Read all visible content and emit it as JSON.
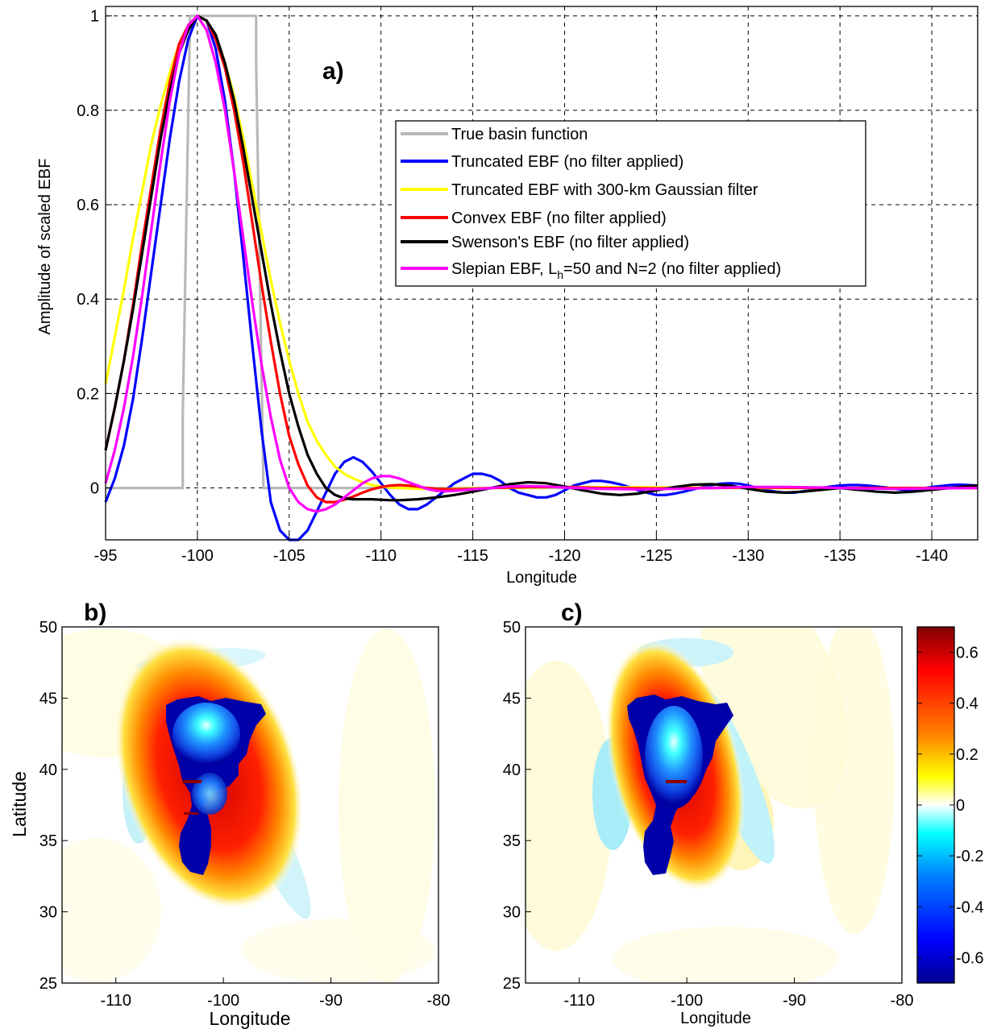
{
  "chart_data": [
    {
      "panel": "a)",
      "type": "line",
      "xlabel": "Longitude",
      "ylabel": "Amplitude of scaled EBF",
      "xlim": [
        -95,
        -142.5
      ],
      "ylim": [
        -0.11,
        1.02
      ],
      "x_reversed": true,
      "xticks": [
        -95,
        -100,
        -105,
        -110,
        -115,
        -120,
        -125,
        -130,
        -135,
        -140
      ],
      "xtick_labels": [
        "-95",
        "-100",
        "-105",
        "-110",
        "-115",
        "-120",
        "-125",
        "-130",
        "-135",
        "-140"
      ],
      "yticks": [
        0,
        0.2,
        0.4,
        0.6,
        0.8,
        1
      ],
      "ytick_labels": [
        "0",
        "0.2",
        "0.4",
        "0.6",
        "0.8",
        "1"
      ],
      "grid": true,
      "legend_position": "top-right",
      "series": [
        {
          "name": "True basin function",
          "color": "#b9b9b9",
          "x": [
            -95,
            -99.2,
            -99.2,
            -99.6,
            -99.6,
            -101,
            -103.2,
            -103.2,
            -103.6,
            -103.6,
            -142.5
          ],
          "y": [
            0,
            0,
            0.15,
            1,
            1,
            1,
            1,
            0.9,
            0,
            0,
            0
          ]
        },
        {
          "name": "Truncated EBF (no filter applied)",
          "color": "#0000ff",
          "x": [
            -95,
            -95.5,
            -96,
            -96.5,
            -97,
            -97.5,
            -98,
            -98.5,
            -99,
            -99.5,
            -100,
            -100.5,
            -101,
            -101.5,
            -102,
            -102.5,
            -103,
            -103.5,
            -104,
            -104.5,
            -105,
            -105.5,
            -106,
            -106.5,
            -107,
            -107.5,
            -108,
            -108.5,
            -109,
            -109.5,
            -110,
            -110.5,
            -111,
            -111.5,
            -112,
            -112.5,
            -113,
            -113.5,
            -114,
            -114.5,
            -115,
            -115.5,
            -116,
            -116.5,
            -117,
            -117.5,
            -118,
            -118.5,
            -119,
            -119.5,
            -120,
            -120.5,
            -121,
            -121.5,
            -122,
            -122.5,
            -123,
            -123.5,
            -124,
            -124.5,
            -125,
            -125.5,
            -126,
            -126.5,
            -127,
            -127.5,
            -128,
            -128.5,
            -129,
            -129.5,
            -130,
            -130.5,
            -131,
            -131.5,
            -132,
            -132.5,
            -133,
            -133.5,
            -134,
            -134.5,
            -135,
            -135.5,
            -136,
            -136.5,
            -137,
            -137.5,
            -138,
            -138.5,
            -139,
            -139.5,
            -140,
            -140.5,
            -141,
            -141.5,
            -142,
            -142.5
          ],
          "y": [
            -0.03,
            0.02,
            0.09,
            0.19,
            0.32,
            0.46,
            0.6,
            0.74,
            0.86,
            0.95,
            1.0,
            0.99,
            0.93,
            0.82,
            0.67,
            0.49,
            0.3,
            0.12,
            -0.03,
            -0.09,
            -0.11,
            -0.11,
            -0.09,
            -0.05,
            -0.01,
            0.03,
            0.055,
            0.065,
            0.055,
            0.035,
            0.01,
            -0.015,
            -0.035,
            -0.045,
            -0.045,
            -0.035,
            -0.02,
            -0.005,
            0.01,
            0.02,
            0.03,
            0.03,
            0.025,
            0.015,
            0.0,
            -0.01,
            -0.015,
            -0.02,
            -0.02,
            -0.015,
            -0.005,
            0.005,
            0.01,
            0.015,
            0.015,
            0.012,
            0.008,
            0.002,
            -0.005,
            -0.01,
            -0.015,
            -0.015,
            -0.012,
            -0.008,
            -0.003,
            0.002,
            0.006,
            0.009,
            0.01,
            0.009,
            0.005,
            0.0,
            -0.005,
            -0.008,
            -0.01,
            -0.01,
            -0.007,
            -0.004,
            0.0,
            0.003,
            0.005,
            0.006,
            0.006,
            0.005,
            0.003,
            0.001,
            -0.002,
            -0.004,
            -0.003,
            -0.001,
            0.002,
            0.004,
            0.006,
            0.007,
            0.006,
            0.005
          ]
        },
        {
          "name": "Truncated EBF with 300-km Gaussian filter",
          "color": "#ffff00",
          "x": [
            -95,
            -95.5,
            -96,
            -96.5,
            -97,
            -97.5,
            -98,
            -98.5,
            -99,
            -99.5,
            -100,
            -100.5,
            -101,
            -101.5,
            -102,
            -102.5,
            -103,
            -103.5,
            -104,
            -104.5,
            -105,
            -105.5,
            -106,
            -106.5,
            -107,
            -107.5,
            -108,
            -108.5,
            -109,
            -109.5,
            -110,
            -110.5,
            -111,
            -111.5,
            -112,
            -112.5,
            -113,
            -114,
            -115,
            -116,
            -118,
            -120,
            -125,
            -130,
            -135,
            -140,
            -142.5
          ],
          "y": [
            0.22,
            0.32,
            0.42,
            0.53,
            0.63,
            0.73,
            0.81,
            0.88,
            0.94,
            0.98,
            1.0,
            0.99,
            0.96,
            0.9,
            0.83,
            0.74,
            0.64,
            0.54,
            0.44,
            0.35,
            0.27,
            0.2,
            0.14,
            0.1,
            0.07,
            0.045,
            0.03,
            0.02,
            0.012,
            0.006,
            0.003,
            0.001,
            0.0,
            -0.001,
            -0.002,
            -0.002,
            -0.002,
            -0.002,
            -0.001,
            0.0,
            0.001,
            0.002,
            0.001,
            0.0,
            0.0,
            0.0,
            0.0
          ]
        },
        {
          "name": "Convex EBF (no filter applied)",
          "color": "#ff0000",
          "x": [
            -95,
            -95.5,
            -96,
            -96.5,
            -97,
            -97.5,
            -98,
            -98.5,
            -99,
            -99.5,
            -100,
            -100.5,
            -101,
            -101.5,
            -102,
            -102.5,
            -103,
            -103.5,
            -104,
            -104.5,
            -105,
            -105.5,
            -106,
            -106.5,
            -107,
            -107.5,
            -108,
            -108.5,
            -109,
            -109.5,
            -110,
            -110.5,
            -111,
            -111.5,
            -112,
            -112.5,
            -113,
            -114,
            -115,
            -116,
            -118,
            -120,
            -122,
            -125,
            -128,
            -130,
            -135,
            -140,
            -142.5
          ],
          "y": [
            0.08,
            0.17,
            0.27,
            0.39,
            0.52,
            0.64,
            0.76,
            0.86,
            0.94,
            0.98,
            1.0,
            0.99,
            0.95,
            0.89,
            0.8,
            0.69,
            0.56,
            0.43,
            0.31,
            0.2,
            0.11,
            0.05,
            0.005,
            -0.02,
            -0.03,
            -0.03,
            -0.025,
            -0.018,
            -0.01,
            -0.003,
            0.002,
            0.005,
            0.006,
            0.005,
            0.003,
            0.0,
            -0.002,
            -0.003,
            -0.002,
            0.0,
            0.002,
            0.002,
            0.0,
            -0.001,
            0.0,
            0.001,
            0.0,
            0.0,
            0.0
          ]
        },
        {
          "name": "Swenson's EBF (no filter applied)",
          "color": "#000000",
          "x": [
            -95,
            -95.5,
            -96,
            -96.5,
            -97,
            -97.5,
            -98,
            -98.5,
            -99,
            -99.5,
            -100,
            -100.5,
            -101,
            -101.5,
            -102,
            -102.5,
            -103,
            -103.5,
            -104,
            -104.5,
            -105,
            -105.5,
            -106,
            -106.5,
            -107,
            -107.5,
            -108,
            -108.5,
            -109,
            -109.5,
            -110,
            -110.5,
            -111,
            -112,
            -113,
            -114,
            -115,
            -116,
            -117,
            -118,
            -119,
            -120,
            -121,
            -122,
            -123,
            -124,
            -125,
            -126,
            -127,
            -128,
            -129,
            -130,
            -131,
            -132,
            -133,
            -134,
            -135,
            -136,
            -137,
            -138,
            -139,
            -140,
            -141,
            -142,
            -142.5
          ],
          "y": [
            0.08,
            0.17,
            0.27,
            0.38,
            0.5,
            0.62,
            0.74,
            0.84,
            0.92,
            0.97,
            1.0,
            0.99,
            0.96,
            0.9,
            0.82,
            0.72,
            0.61,
            0.5,
            0.39,
            0.29,
            0.2,
            0.13,
            0.07,
            0.03,
            0.0,
            -0.015,
            -0.022,
            -0.024,
            -0.024,
            -0.024,
            -0.025,
            -0.026,
            -0.026,
            -0.024,
            -0.02,
            -0.015,
            -0.008,
            0.0,
            0.008,
            0.012,
            0.01,
            0.003,
            -0.005,
            -0.012,
            -0.015,
            -0.012,
            -0.005,
            0.002,
            0.007,
            0.008,
            0.005,
            -0.002,
            -0.008,
            -0.01,
            -0.008,
            -0.004,
            0.0,
            -0.004,
            -0.008,
            -0.01,
            -0.008,
            -0.004,
            0.0,
            0.004,
            0.005
          ]
        },
        {
          "name": "Slepian EBF, L_h=50 and N=2 (no filter applied)",
          "color": "#ff00ff",
          "x": [
            -95,
            -95.5,
            -96,
            -96.5,
            -97,
            -97.5,
            -98,
            -98.5,
            -99,
            -99.5,
            -100,
            -100.5,
            -101,
            -101.5,
            -102,
            -102.5,
            -103,
            -103.5,
            -104,
            -104.5,
            -105,
            -105.5,
            -106,
            -106.5,
            -107,
            -107.5,
            -108,
            -108.5,
            -109,
            -109.5,
            -110,
            -110.5,
            -111,
            -111.5,
            -112,
            -112.5,
            -113,
            -113.5,
            -114,
            -115,
            -116,
            -117,
            -118,
            -119,
            -120,
            -122,
            -124,
            -126,
            -128,
            -130,
            -132,
            -134,
            -136,
            -138,
            -140,
            -142.5
          ],
          "y": [
            0.01,
            0.08,
            0.17,
            0.28,
            0.41,
            0.55,
            0.69,
            0.82,
            0.92,
            0.98,
            1.0,
            0.97,
            0.9,
            0.8,
            0.67,
            0.53,
            0.39,
            0.26,
            0.15,
            0.06,
            0.0,
            -0.03,
            -0.045,
            -0.05,
            -0.045,
            -0.035,
            -0.02,
            -0.005,
            0.01,
            0.02,
            0.025,
            0.025,
            0.02,
            0.012,
            0.005,
            -0.002,
            -0.006,
            -0.007,
            -0.006,
            -0.003,
            0.0,
            0.003,
            0.004,
            0.003,
            0.001,
            -0.002,
            -0.003,
            -0.002,
            0.0,
            0.002,
            0.002,
            0.001,
            -0.001,
            -0.002,
            -0.001,
            0.0
          ]
        }
      ]
    },
    {
      "panel": "b)",
      "type": "heatmap",
      "xlabel": "Longitude",
      "ylabel": "Latitude",
      "xlim": [
        -115,
        -80
      ],
      "ylim": [
        25,
        50
      ],
      "xticks": [
        -110,
        -100,
        -90,
        -80
      ],
      "xtick_labels": [
        "-110",
        "-100",
        "-90",
        "-80"
      ],
      "yticks": [
        25,
        30,
        35,
        40,
        45,
        50
      ],
      "ytick_labels": [
        "25",
        "30",
        "35",
        "40",
        "45",
        "50"
      ]
    },
    {
      "panel": "c)",
      "type": "heatmap",
      "xlabel": "Longitude",
      "ylabel": "",
      "xlim": [
        -115,
        -80
      ],
      "ylim": [
        25,
        50
      ],
      "xticks": [
        -110,
        -100,
        -90,
        -80
      ],
      "xtick_labels": [
        "-110",
        "-100",
        "-90",
        "-80"
      ],
      "yticks": [
        25,
        30,
        35,
        40,
        45,
        50
      ],
      "ytick_labels": [
        "25",
        "30",
        "35",
        "40",
        "45",
        "50"
      ],
      "colorbar": {
        "range": [
          -0.7,
          0.7
        ],
        "ticks": [
          0.6,
          0.4,
          0.2,
          0,
          -0.2,
          -0.4,
          -0.6
        ],
        "tick_labels": [
          "0.6",
          "0.4",
          "0.2",
          "0",
          "-0.2",
          "-0.4",
          "-0.6"
        ],
        "colormap": "jet-white-center"
      }
    }
  ],
  "legend": {
    "entries": [
      {
        "text": "True basin function"
      },
      {
        "text": "Truncated EBF (no filter applied)"
      },
      {
        "text": "Truncated EBF with 300-km Gaussian filter"
      },
      {
        "text": "Convex EBF (no filter applied)"
      },
      {
        "text": "Swenson's EBF (no filter applied)"
      },
      {
        "text_pre": "Slepian EBF, L",
        "text_sub": "h",
        "text_post": "=50 and N=2 (no filter applied)"
      }
    ]
  }
}
